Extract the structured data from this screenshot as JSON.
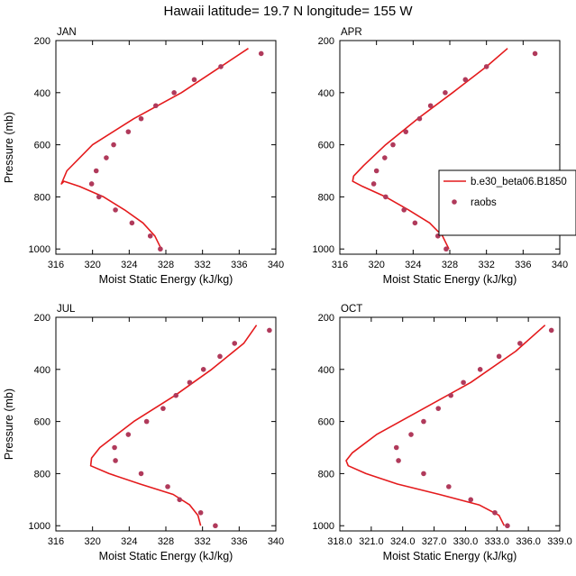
{
  "title": "Hawaii  latitude= 19.7 N longitude= 155 W",
  "legend": {
    "model_label": "b.e30_beta06.B1850",
    "obs_label": "raobs",
    "model_color": "#e41a1c",
    "obs_color": "#b03a5b"
  },
  "chart_data": [
    {
      "type": "line",
      "panel_title": "JAN",
      "xlabel": "Moist Static Energy (kJ/kg)",
      "ylabel": "Pressure (mb)",
      "xlim": [
        316,
        340
      ],
      "ylim": [
        1020,
        200
      ],
      "xticks": [
        316,
        320,
        324,
        328,
        332,
        336,
        340
      ],
      "xtick_labels": [
        "316",
        "320",
        "324",
        "328",
        "332",
        "336",
        "340"
      ],
      "yticks": [
        200,
        400,
        600,
        800,
        1000
      ],
      "ytick_labels": [
        "200",
        "400",
        "600",
        "800",
        "1000"
      ],
      "model": {
        "name": "b.e30_beta06.B1850",
        "mse": [
          327.5,
          326.8,
          325.5,
          323.5,
          321.2,
          318.6,
          316.9,
          316.6,
          317.2,
          320.0,
          324.5,
          329.7,
          334.0,
          337.0
        ],
        "pressure": [
          1000,
          950,
          900,
          850,
          800,
          760,
          740,
          750,
          700,
          600,
          500,
          400,
          300,
          230
        ]
      },
      "obs": {
        "name": "raobs",
        "mse": [
          327.4,
          326.3,
          324.3,
          322.5,
          320.7,
          319.9,
          320.4,
          321.5,
          322.3,
          323.9,
          325.3,
          326.9,
          328.9,
          331.1,
          334.0,
          338.4
        ],
        "pressure": [
          1000,
          950,
          900,
          850,
          800,
          750,
          700,
          650,
          600,
          550,
          500,
          450,
          400,
          350,
          300,
          250
        ]
      }
    },
    {
      "type": "line",
      "panel_title": "APR",
      "xlabel": "Moist Static Energy (kJ/kg)",
      "ylabel": "",
      "xlim": [
        316,
        340
      ],
      "ylim": [
        1020,
        200
      ],
      "xticks": [
        316,
        320,
        324,
        328,
        332,
        336,
        340
      ],
      "xtick_labels": [
        "316",
        "320",
        "324",
        "328",
        "332",
        "336",
        "340"
      ],
      "yticks": [
        200,
        400,
        600,
        800,
        1000
      ],
      "ytick_labels": [
        "200",
        "400",
        "600",
        "800",
        "1000"
      ],
      "model": {
        "name": "b.e30_beta06.B1850",
        "mse": [
          327.9,
          327.2,
          325.8,
          323.5,
          321.0,
          318.5,
          317.4,
          317.5,
          318.6,
          321.0,
          324.5,
          328.3,
          332.0,
          334.3
        ],
        "pressure": [
          1000,
          950,
          900,
          850,
          800,
          760,
          740,
          720,
          680,
          600,
          500,
          400,
          300,
          230
        ]
      },
      "obs": {
        "name": "raobs",
        "mse": [
          327.6,
          326.7,
          324.2,
          323.0,
          321.0,
          319.7,
          320.0,
          320.9,
          321.8,
          323.2,
          324.7,
          325.9,
          327.5,
          329.7,
          332.0,
          337.3
        ],
        "pressure": [
          1000,
          950,
          900,
          850,
          800,
          750,
          700,
          650,
          600,
          550,
          500,
          450,
          400,
          350,
          300,
          250
        ]
      }
    },
    {
      "type": "line",
      "panel_title": "JUL",
      "xlabel": "Moist Static Energy (kJ/kg)",
      "ylabel": "Pressure (mb)",
      "xlim": [
        316,
        340
      ],
      "ylim": [
        1020,
        200
      ],
      "xticks": [
        316,
        320,
        324,
        328,
        332,
        336,
        340
      ],
      "xtick_labels": [
        "316",
        "320",
        "324",
        "328",
        "332",
        "336",
        "340"
      ],
      "yticks": [
        200,
        400,
        600,
        800,
        1000
      ],
      "ytick_labels": [
        "200",
        "400",
        "600",
        "800",
        "1000"
      ],
      "model": {
        "name": "b.e30_beta06.B1850",
        "mse": [
          331.8,
          331.5,
          330.6,
          328.8,
          325.2,
          321.8,
          319.8,
          319.9,
          320.8,
          324.5,
          329.0,
          333.0,
          336.5,
          337.9
        ],
        "pressure": [
          1000,
          960,
          920,
          880,
          840,
          800,
          770,
          740,
          700,
          600,
          500,
          400,
          300,
          230
        ]
      },
      "obs": {
        "name": "raobs",
        "mse": [
          333.4,
          331.8,
          329.5,
          328.2,
          325.3,
          322.5,
          322.4,
          323.9,
          325.9,
          327.7,
          329.1,
          330.6,
          332.1,
          333.9,
          335.5,
          339.3
        ],
        "pressure": [
          1000,
          950,
          900,
          850,
          800,
          750,
          700,
          650,
          600,
          550,
          500,
          450,
          400,
          350,
          300,
          250
        ]
      }
    },
    {
      "type": "line",
      "panel_title": "OCT",
      "xlabel": "Moist Static Energy (kJ/kg)",
      "ylabel": "",
      "xlim": [
        318,
        339
      ],
      "ylim": [
        1020,
        200
      ],
      "xticks": [
        318,
        321,
        324,
        327,
        330,
        333,
        336,
        339
      ],
      "xtick_labels": [
        "318.0",
        "321.0",
        "324.0",
        "327.0",
        "330.0",
        "333.0",
        "336.0",
        "339.0"
      ],
      "yticks": [
        200,
        400,
        600,
        800,
        1000
      ],
      "ytick_labels": [
        "200",
        "400",
        "600",
        "800",
        "1000"
      ],
      "model": {
        "name": "b.e30_beta06.B1850",
        "mse": [
          333.7,
          333.2,
          331.3,
          327.5,
          323.5,
          320.5,
          318.8,
          318.6,
          319.2,
          321.5,
          326.0,
          330.5,
          334.8,
          337.6
        ],
        "pressure": [
          1000,
          960,
          920,
          880,
          840,
          800,
          770,
          750,
          720,
          650,
          550,
          450,
          330,
          230
        ]
      },
      "obs": {
        "name": "raobs",
        "mse": [
          334.0,
          332.8,
          330.5,
          328.4,
          326.0,
          323.6,
          323.4,
          324.8,
          326.0,
          327.4,
          328.6,
          329.8,
          331.4,
          333.2,
          335.2,
          338.2
        ],
        "pressure": [
          1000,
          950,
          900,
          850,
          800,
          750,
          700,
          650,
          600,
          550,
          500,
          450,
          400,
          350,
          300,
          250
        ]
      }
    }
  ]
}
